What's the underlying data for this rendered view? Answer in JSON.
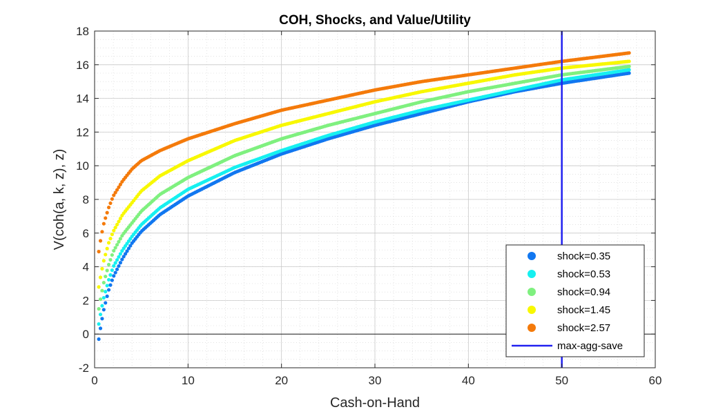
{
  "chart_data": {
    "type": "scatter",
    "title": "COH, Shocks, and Value/Utility",
    "xlabel": "Cash-on-Hand",
    "ylabel": "V(coh(a, k, z), z)",
    "xlim": [
      0,
      60
    ],
    "ylim": [
      -2,
      18
    ],
    "xticks": [
      0,
      10,
      20,
      30,
      40,
      50,
      60
    ],
    "yticks": [
      -2,
      0,
      2,
      4,
      6,
      8,
      10,
      12,
      14,
      16,
      18
    ],
    "grid": true,
    "minor_grid": true,
    "legend_position": "bottom-right",
    "x_range_of_points": [
      0.45,
      57.2
    ],
    "series": [
      {
        "name": "shock=0.35",
        "color": "#1177f0",
        "x": [
          0.45,
          0.7,
          1,
          1.5,
          2,
          3,
          4,
          5,
          7,
          10,
          15,
          20,
          25,
          30,
          35,
          40,
          45,
          50,
          57.2
        ],
        "y": [
          -0.3,
          0.6,
          1.5,
          2.6,
          3.4,
          4.5,
          5.4,
          6.1,
          7.1,
          8.2,
          9.6,
          10.7,
          11.6,
          12.4,
          13.1,
          13.8,
          14.4,
          14.9,
          15.5
        ]
      },
      {
        "name": "shock=0.53",
        "color": "#16f0f0",
        "x": [
          0.45,
          0.7,
          1,
          1.5,
          2,
          3,
          4,
          5,
          7,
          10,
          15,
          20,
          25,
          30,
          35,
          40,
          45,
          50,
          57.2
        ],
        "y": [
          0.6,
          1.4,
          2.2,
          3.2,
          4.0,
          5.0,
          5.8,
          6.5,
          7.5,
          8.6,
          9.9,
          10.9,
          11.8,
          12.6,
          13.3,
          13.9,
          14.5,
          15.1,
          15.7
        ]
      },
      {
        "name": "shock=0.94",
        "color": "#7ff07f",
        "x": [
          0.45,
          0.7,
          1,
          1.5,
          2,
          3,
          4,
          5,
          7,
          10,
          15,
          20,
          25,
          30,
          35,
          40,
          45,
          50,
          57.2
        ],
        "y": [
          1.5,
          2.3,
          3.1,
          4.1,
          4.9,
          5.9,
          6.6,
          7.3,
          8.3,
          9.3,
          10.6,
          11.6,
          12.4,
          13.1,
          13.8,
          14.4,
          14.9,
          15.4,
          15.9
        ]
      },
      {
        "name": "shock=1.45",
        "color": "#f8f800",
        "x": [
          0.45,
          0.7,
          1,
          1.5,
          2,
          3,
          4,
          5,
          7,
          10,
          15,
          20,
          25,
          30,
          35,
          40,
          45,
          50,
          57.2
        ],
        "y": [
          2.8,
          3.6,
          4.4,
          5.4,
          6.1,
          7.1,
          7.8,
          8.5,
          9.4,
          10.3,
          11.5,
          12.4,
          13.1,
          13.8,
          14.4,
          14.9,
          15.4,
          15.8,
          16.2
        ]
      },
      {
        "name": "shock=2.57",
        "color": "#f47a0a",
        "x": [
          0.45,
          0.7,
          1,
          1.5,
          2,
          3,
          4,
          5,
          7,
          10,
          15,
          20,
          25,
          30,
          35,
          40,
          45,
          50,
          57.2
        ],
        "y": [
          4.9,
          5.8,
          6.6,
          7.5,
          8.2,
          9.1,
          9.8,
          10.3,
          10.9,
          11.6,
          12.5,
          13.3,
          13.9,
          14.5,
          15.0,
          15.4,
          15.8,
          16.2,
          16.7
        ]
      }
    ],
    "reference_line": {
      "name": "max-agg-save",
      "x": 50,
      "color": "#2020f0"
    },
    "zero_line": {
      "y": 0,
      "color": "#000000"
    }
  }
}
